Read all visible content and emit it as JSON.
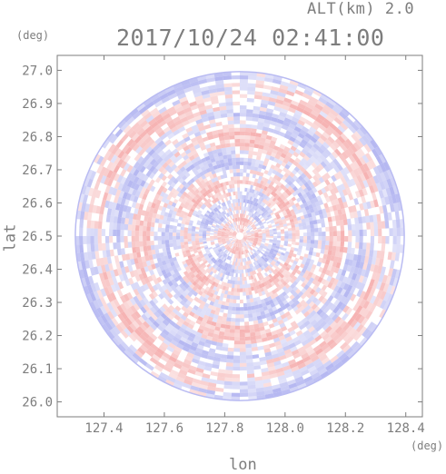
{
  "header": {
    "altitude_label": "ALT(km) 2.0",
    "timestamp": "2017/10/24 02:41:00"
  },
  "colors": {
    "positive": "#f4a6a6",
    "negative": "#a9acef",
    "axis": "#7d7d7d"
  },
  "chart_data": {
    "type": "heatmap",
    "title": "2017/10/24 02:41:00",
    "subtitle": "ALT(km) 2.0",
    "xlabel": "lon",
    "ylabel": "lat",
    "x_unit": "(deg)",
    "y_unit": "(deg)",
    "xlim": [
      127.245,
      128.455
    ],
    "ylim": [
      25.955,
      27.045
    ],
    "x_ticks": [
      127.4,
      127.6,
      127.8,
      128.0,
      128.2,
      128.4
    ],
    "x_tick_labels": [
      "127.4",
      "127.6",
      "127.8",
      "128.0",
      "128.2",
      "128.4"
    ],
    "y_ticks": [
      26.0,
      26.1,
      26.2,
      26.3,
      26.4,
      26.5,
      26.6,
      26.7,
      26.8,
      26.9,
      27.0
    ],
    "y_tick_labels": [
      "26.0",
      "26.1",
      "26.2",
      "26.3",
      "26.4",
      "26.5",
      "26.6",
      "26.7",
      "26.8",
      "26.9",
      "27.0"
    ],
    "radar_center": {
      "lon": 127.85,
      "lat": 26.5
    },
    "radar_radius_deg": 0.545,
    "field": "signed radial pattern, red positive / blue negative, alternating concentric bands",
    "grid": false,
    "legend": "none"
  }
}
